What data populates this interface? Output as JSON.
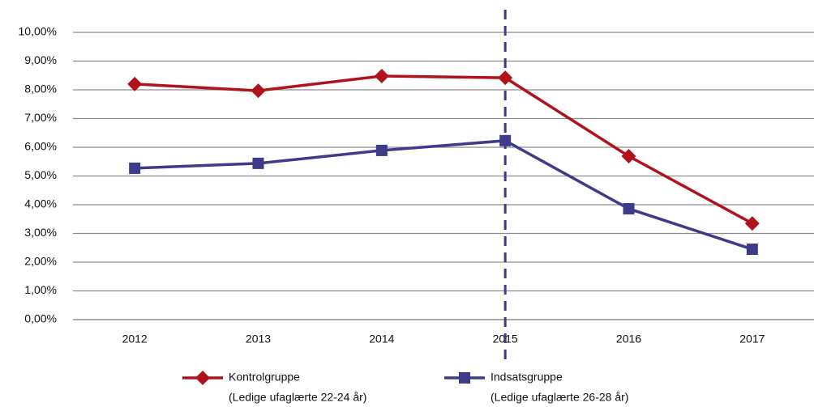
{
  "chart_data": {
    "type": "line",
    "categories": [
      "2012",
      "2013",
      "2014",
      "2015",
      "2016",
      "2017"
    ],
    "series": [
      {
        "name": "Kontrolgruppe",
        "legend_note": "(Ledige ufaglærte 22-24 år)",
        "color": "#b0121b",
        "marker": "diamond",
        "values": [
          8.2,
          7.97,
          8.48,
          8.42,
          5.69,
          3.35
        ]
      },
      {
        "name": "Indsatsgruppe",
        "legend_note": "(Ledige ufaglærte 26-28 år)",
        "color": "#3f3a8a",
        "marker": "square",
        "values": [
          5.27,
          5.44,
          5.89,
          6.23,
          3.86,
          2.45
        ]
      }
    ],
    "ylim": [
      0,
      10
    ],
    "yticks": [
      {
        "value": 0,
        "label": "0,00%"
      },
      {
        "value": 1,
        "label": "1,00%"
      },
      {
        "value": 2,
        "label": "2,00%"
      },
      {
        "value": 3,
        "label": "3,00%"
      },
      {
        "value": 4,
        "label": "4,00%"
      },
      {
        "value": 5,
        "label": "5,00%"
      },
      {
        "value": 6,
        "label": "6,00%"
      },
      {
        "value": 7,
        "label": "7,00%"
      },
      {
        "value": 8,
        "label": "8,00%"
      },
      {
        "value": 9,
        "label": "9,00%"
      },
      {
        "value": 10,
        "label": "10,00%"
      }
    ],
    "grid": true,
    "reference_line": {
      "x": "2015",
      "style": "dashed",
      "color": "#3f3a8a"
    },
    "legend": "bottom"
  }
}
